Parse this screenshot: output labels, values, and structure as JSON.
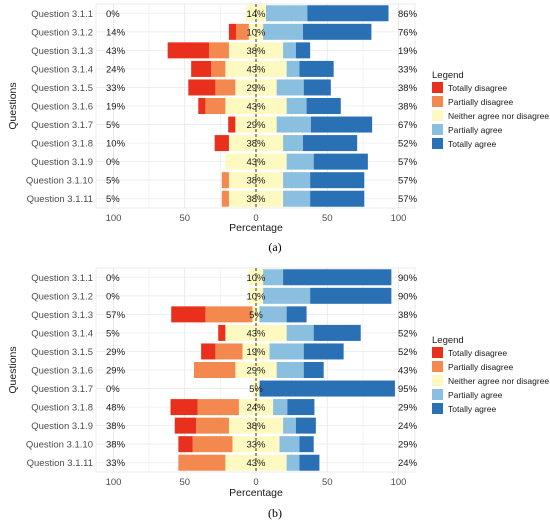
{
  "chart_data": [
    {
      "type": "bar",
      "layout": "diverging-stacked",
      "panel_label": "(a)",
      "ylabel": "Questions",
      "xlabel": "Percentage",
      "xticks": [
        "100",
        "50",
        "0",
        "50",
        "100"
      ],
      "xlim": [
        -100,
        100
      ],
      "grid": true,
      "legend_title": "Legend",
      "legend_position": "right",
      "categories": [
        "Question 3.1.1",
        "Question 3.1.2",
        "Question 3.1.3",
        "Question 3.1.4",
        "Question 3.1.5",
        "Question 3.1.6",
        "Question 3.1.7",
        "Question 3.1.8",
        "Question 3.1.9",
        "Question 3.1.10",
        "Question 3.1.11"
      ],
      "left_labels": [
        "0%",
        "14%",
        "43%",
        "24%",
        "33%",
        "19%",
        "5%",
        "10%",
        "0%",
        "5%",
        "5%"
      ],
      "center_labels": [
        "14%",
        "10%",
        "38%",
        "43%",
        "29%",
        "43%",
        "29%",
        "38%",
        "43%",
        "38%",
        "38%"
      ],
      "right_labels": [
        "86%",
        "76%",
        "19%",
        "33%",
        "38%",
        "38%",
        "67%",
        "52%",
        "57%",
        "57%",
        "57%"
      ],
      "series": [
        {
          "name": "Totally disagree",
          "color": "#e8301c",
          "values": [
            0,
            5,
            29,
            14,
            19,
            5,
            5,
            10,
            0,
            0,
            0
          ]
        },
        {
          "name": "Partially disagree",
          "color": "#f4894f",
          "values": [
            0,
            9,
            14,
            10,
            14,
            14,
            0,
            0,
            0,
            5,
            5
          ]
        },
        {
          "name": "Neither agree nor disagree",
          "color": "#fdf9c0",
          "values": [
            14,
            10,
            38,
            43,
            29,
            43,
            29,
            38,
            43,
            38,
            38
          ]
        },
        {
          "name": "Partially agree",
          "color": "#8bbfdf",
          "values": [
            29,
            28,
            9,
            9,
            19,
            14,
            24,
            14,
            19,
            19,
            19
          ]
        },
        {
          "name": "Totally agree",
          "color": "#2a70b5",
          "values": [
            57,
            48,
            10,
            24,
            19,
            24,
            43,
            38,
            38,
            38,
            38
          ]
        }
      ]
    },
    {
      "type": "bar",
      "layout": "diverging-stacked",
      "panel_label": "(b)",
      "ylabel": "Questions",
      "xlabel": "Percentage",
      "xticks": [
        "100",
        "50",
        "0",
        "50",
        "100"
      ],
      "xlim": [
        -100,
        100
      ],
      "grid": true,
      "legend_title": "Legend",
      "legend_position": "right",
      "categories": [
        "Question 3.1.1",
        "Question 3.1.2",
        "Question 3.1.3",
        "Question 3.1.4",
        "Question 3.1.5",
        "Question 3.1.6",
        "Question 3.1.7",
        "Question 3.1.8",
        "Question 3.1.9",
        "Question 3.1.10",
        "Question 3.1.11"
      ],
      "left_labels": [
        "0%",
        "0%",
        "57%",
        "5%",
        "29%",
        "29%",
        "0%",
        "48%",
        "38%",
        "38%",
        "33%"
      ],
      "center_labels": [
        "10%",
        "10%",
        "5%",
        "43%",
        "19%",
        "29%",
        "5%",
        "24%",
        "38%",
        "33%",
        "43%"
      ],
      "right_labels": [
        "90%",
        "90%",
        "38%",
        "52%",
        "52%",
        "43%",
        "95%",
        "29%",
        "24%",
        "29%",
        "24%"
      ],
      "series": [
        {
          "name": "Totally disagree",
          "color": "#e8301c",
          "values": [
            0,
            0,
            24,
            5,
            10,
            0,
            0,
            19,
            15,
            10,
            0
          ]
        },
        {
          "name": "Partially disagree",
          "color": "#f4894f",
          "values": [
            0,
            0,
            33,
            0,
            19,
            29,
            0,
            29,
            23,
            28,
            33
          ]
        },
        {
          "name": "Neither agree nor disagree",
          "color": "#fdf9c0",
          "values": [
            10,
            10,
            5,
            43,
            19,
            29,
            5,
            24,
            38,
            33,
            43
          ]
        },
        {
          "name": "Partially agree",
          "color": "#8bbfdf",
          "values": [
            14,
            33,
            19,
            19,
            24,
            19,
            0,
            10,
            9,
            14,
            9
          ]
        },
        {
          "name": "Totally agree",
          "color": "#2a70b5",
          "values": [
            76,
            57,
            14,
            33,
            28,
            14,
            95,
            19,
            14,
            10,
            14
          ]
        }
      ]
    }
  ]
}
